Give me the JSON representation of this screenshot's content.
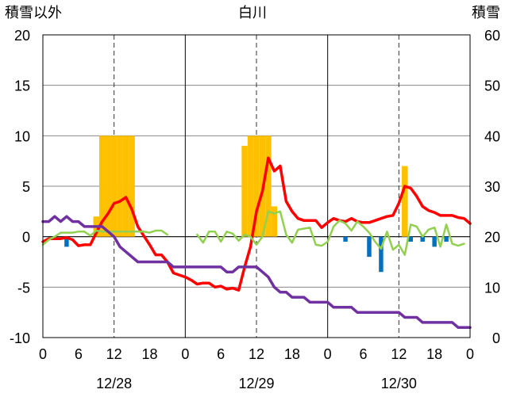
{
  "chart_data": {
    "type": "bar+line",
    "title": "白川",
    "left_axis_title": "積雪以外",
    "right_axis_title": "積雪",
    "left_ylim": [
      -10,
      20
    ],
    "left_yticks": [
      -10,
      -5,
      0,
      5,
      10,
      15,
      20
    ],
    "right_ylim": [
      0,
      60
    ],
    "right_yticks": [
      0,
      10,
      20,
      30,
      40,
      50,
      60
    ],
    "x_hour_range": [
      0,
      72
    ],
    "x_ticks": [
      {
        "h": 0,
        "label": "0"
      },
      {
        "h": 6,
        "label": "6"
      },
      {
        "h": 12,
        "label": "12"
      },
      {
        "h": 18,
        "label": "18"
      },
      {
        "h": 24,
        "label": "0"
      },
      {
        "h": 30,
        "label": "6"
      },
      {
        "h": 36,
        "label": "12"
      },
      {
        "h": 42,
        "label": "18"
      },
      {
        "h": 48,
        "label": "0"
      },
      {
        "h": 54,
        "label": "6"
      },
      {
        "h": 60,
        "label": "12"
      },
      {
        "h": 66,
        "label": "18"
      },
      {
        "h": 72,
        "label": "0"
      }
    ],
    "dates": [
      {
        "h": 12,
        "label": "12/28"
      },
      {
        "h": 36,
        "label": "12/29"
      },
      {
        "h": 60,
        "label": "12/30"
      }
    ],
    "snowfall_bars": [
      {
        "h": 9,
        "value": 2
      },
      {
        "h": 10,
        "value": 10
      },
      {
        "h": 11,
        "value": 10
      },
      {
        "h": 12,
        "value": 10
      },
      {
        "h": 13,
        "value": 10
      },
      {
        "h": 14,
        "value": 10
      },
      {
        "h": 15,
        "value": 10
      },
      {
        "h": 34,
        "value": 9
      },
      {
        "h": 35,
        "value": 10
      },
      {
        "h": 36,
        "value": 10
      },
      {
        "h": 37,
        "value": 10
      },
      {
        "h": 38,
        "value": 10
      },
      {
        "h": 39,
        "value": 3
      },
      {
        "h": 61,
        "value": 7
      }
    ],
    "negative_bars": [
      {
        "h": 4,
        "value": -1
      },
      {
        "h": 51,
        "value": -0.5
      },
      {
        "h": 55,
        "value": -2
      },
      {
        "h": 57,
        "value": -3.5
      },
      {
        "h": 62,
        "value": -0.5
      },
      {
        "h": 64,
        "value": -0.5
      },
      {
        "h": 66,
        "value": -1
      },
      {
        "h": 68,
        "value": -0.5
      }
    ],
    "series": [
      {
        "axis": "left",
        "color": "#ff0000",
        "points": [
          [
            0,
            -0.5
          ],
          [
            1,
            -0.2
          ],
          [
            2,
            -0.2
          ],
          [
            3,
            -0.2
          ],
          [
            4,
            -0.1
          ],
          [
            5,
            -0.3
          ],
          [
            6,
            -0.9
          ],
          [
            7,
            -0.8
          ],
          [
            8,
            -0.8
          ],
          [
            9,
            0.4
          ],
          [
            10,
            1.5
          ],
          [
            11,
            2.3
          ],
          [
            12,
            3.3
          ],
          [
            13,
            3.5
          ],
          [
            14,
            3.9
          ],
          [
            15,
            2.7
          ],
          [
            16,
            1.0
          ],
          [
            17,
            0.1
          ],
          [
            18,
            -0.8
          ],
          [
            19,
            -1.8
          ],
          [
            20,
            -1.8
          ],
          [
            21,
            -2.5
          ],
          [
            22,
            -3.6
          ],
          [
            23,
            -3.8
          ],
          [
            24,
            -4.0
          ],
          [
            25,
            -4.3
          ],
          [
            26,
            -4.7
          ],
          [
            27,
            -4.6
          ],
          [
            28,
            -4.6
          ],
          [
            29,
            -5.0
          ],
          [
            30,
            -4.9
          ],
          [
            31,
            -5.2
          ],
          [
            32,
            -5.1
          ],
          [
            33,
            -5.3
          ],
          [
            34,
            -3.0
          ],
          [
            35,
            -1.0
          ],
          [
            36,
            2.5
          ],
          [
            37,
            4.5
          ],
          [
            38,
            7.8
          ],
          [
            39,
            6.5
          ],
          [
            40,
            7.0
          ],
          [
            41,
            3.5
          ],
          [
            42,
            2.5
          ],
          [
            43,
            1.8
          ],
          [
            44,
            1.6
          ],
          [
            45,
            1.6
          ],
          [
            46,
            1.6
          ],
          [
            47,
            0.9
          ],
          [
            48,
            1.4
          ],
          [
            49,
            1.8
          ],
          [
            50,
            1.6
          ],
          [
            51,
            1.5
          ],
          [
            52,
            1.8
          ],
          [
            53,
            1.5
          ],
          [
            54,
            1.4
          ],
          [
            55,
            1.4
          ],
          [
            56,
            1.6
          ],
          [
            57,
            1.8
          ],
          [
            58,
            2.0
          ],
          [
            59,
            2.1
          ],
          [
            60,
            3.3
          ],
          [
            61,
            5.0
          ],
          [
            62,
            4.8
          ],
          [
            63,
            4.0
          ],
          [
            64,
            3.0
          ],
          [
            65,
            2.6
          ],
          [
            66,
            2.4
          ],
          [
            67,
            2.1
          ],
          [
            68,
            2.1
          ],
          [
            69,
            2.1
          ],
          [
            70,
            1.9
          ],
          [
            71,
            1.8
          ],
          [
            72,
            1.3
          ]
        ]
      },
      {
        "axis": "left",
        "color": "#92d050",
        "points": [
          [
            0,
            -0.8
          ],
          [
            1,
            -0.3
          ],
          [
            2,
            0.0
          ],
          [
            3,
            0.4
          ],
          [
            4,
            0.4
          ],
          [
            5,
            0.4
          ],
          [
            6,
            0.5
          ],
          [
            7,
            0.5
          ],
          [
            8,
            0.1
          ],
          [
            9,
            0.6
          ],
          [
            10,
            0.5
          ],
          [
            11,
            0.5
          ],
          [
            12,
            0.5
          ],
          [
            13,
            0.5
          ],
          [
            14,
            0.5
          ],
          [
            15,
            0.5
          ],
          [
            16,
            0.5
          ],
          [
            17,
            0.5
          ],
          [
            18,
            0.4
          ],
          [
            19,
            0.6
          ],
          [
            20,
            0.6
          ],
          [
            21,
            0.2
          ],
          [
            null,
            null
          ],
          [
            26,
            0.2
          ],
          [
            27,
            -0.6
          ],
          [
            28,
            0.5
          ],
          [
            29,
            0.5
          ],
          [
            30,
            -0.5
          ],
          [
            31,
            0.5
          ],
          [
            32,
            0.3
          ],
          [
            33,
            -0.4
          ],
          [
            34,
            0.2
          ],
          [
            35,
            0.0
          ],
          [
            36,
            -0.8
          ],
          [
            37,
            0.0
          ],
          [
            38,
            2.5
          ],
          [
            39,
            2.3
          ],
          [
            40,
            2.5
          ],
          [
            41,
            0.2
          ],
          [
            42,
            -0.6
          ],
          [
            43,
            0.7
          ],
          [
            44,
            0.8
          ],
          [
            45,
            0.9
          ],
          [
            46,
            -0.8
          ],
          [
            47,
            -0.9
          ],
          [
            48,
            -0.5
          ],
          [
            49,
            1.0
          ],
          [
            50,
            1.6
          ],
          [
            51,
            1.3
          ],
          [
            52,
            0.6
          ],
          [
            53,
            1.5
          ],
          [
            54,
            1.0
          ],
          [
            55,
            0.4
          ],
          [
            56,
            -0.5
          ],
          [
            57,
            -1.2
          ],
          [
            58,
            0.5
          ],
          [
            59,
            -1.3
          ],
          [
            60,
            -0.8
          ],
          [
            61,
            -1.8
          ],
          [
            62,
            1.2
          ],
          [
            63,
            1.0
          ],
          [
            64,
            0.0
          ],
          [
            65,
            0.7
          ],
          [
            66,
            0.9
          ],
          [
            67,
            -1.0
          ],
          [
            68,
            1.2
          ],
          [
            69,
            -0.7
          ],
          [
            70,
            -0.9
          ],
          [
            71,
            -0.7
          ]
        ]
      },
      {
        "axis": "right",
        "color": "#7030a0",
        "points": [
          [
            0,
            23
          ],
          [
            1,
            23
          ],
          [
            2,
            24
          ],
          [
            3,
            23
          ],
          [
            4,
            24
          ],
          [
            5,
            23
          ],
          [
            6,
            23
          ],
          [
            7,
            22
          ],
          [
            8,
            22
          ],
          [
            9,
            22
          ],
          [
            10,
            22
          ],
          [
            11,
            21
          ],
          [
            12,
            20
          ],
          [
            13,
            18
          ],
          [
            14,
            17
          ],
          [
            15,
            16
          ],
          [
            16,
            15
          ],
          [
            17,
            15
          ],
          [
            18,
            15
          ],
          [
            19,
            15
          ],
          [
            20,
            15
          ],
          [
            21,
            15
          ],
          [
            22,
            14
          ],
          [
            23,
            14
          ],
          [
            24,
            14
          ],
          [
            25,
            14
          ],
          [
            26,
            14
          ],
          [
            27,
            14
          ],
          [
            28,
            14
          ],
          [
            29,
            14
          ],
          [
            30,
            14
          ],
          [
            31,
            13
          ],
          [
            32,
            13
          ],
          [
            33,
            14
          ],
          [
            34,
            14
          ],
          [
            35,
            14
          ],
          [
            36,
            14
          ],
          [
            37,
            13
          ],
          [
            38,
            12
          ],
          [
            39,
            10
          ],
          [
            40,
            9
          ],
          [
            41,
            9
          ],
          [
            42,
            8
          ],
          [
            43,
            8
          ],
          [
            44,
            8
          ],
          [
            45,
            7
          ],
          [
            46,
            7
          ],
          [
            47,
            7
          ],
          [
            48,
            7
          ],
          [
            49,
            6
          ],
          [
            50,
            6
          ],
          [
            51,
            6
          ],
          [
            52,
            6
          ],
          [
            53,
            5
          ],
          [
            54,
            5
          ],
          [
            55,
            5
          ],
          [
            56,
            5
          ],
          [
            57,
            5
          ],
          [
            58,
            5
          ],
          [
            59,
            5
          ],
          [
            60,
            5
          ],
          [
            61,
            4
          ],
          [
            62,
            4
          ],
          [
            63,
            4
          ],
          [
            64,
            3
          ],
          [
            65,
            3
          ],
          [
            66,
            3
          ],
          [
            67,
            3
          ],
          [
            68,
            3
          ],
          [
            69,
            3
          ],
          [
            70,
            2
          ],
          [
            71,
            2
          ],
          [
            72,
            2
          ]
        ]
      }
    ],
    "grid": true
  }
}
